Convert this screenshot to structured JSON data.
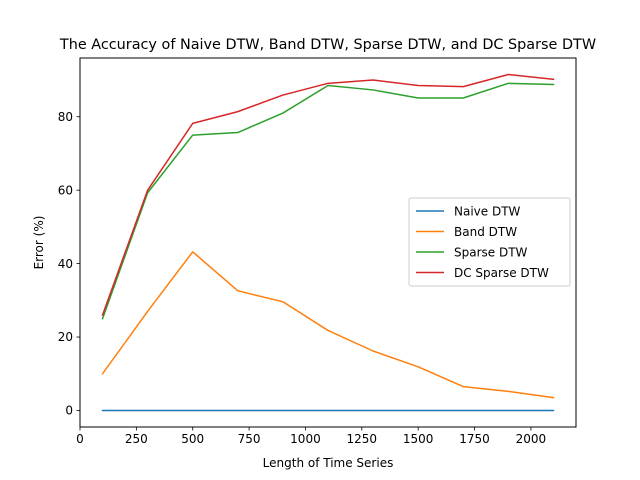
{
  "chart_data": {
    "type": "line",
    "title": "The Accuracy of Naive DTW, Band DTW, Sparse DTW, and DC Sparse DTW",
    "xlabel": "Length of Time Series",
    "ylabel": "Error (%)",
    "xlim": [
      0,
      2200
    ],
    "ylim": [
      -4.5,
      96
    ],
    "xticks": [
      0,
      250,
      500,
      750,
      1000,
      1250,
      1500,
      1750,
      2000
    ],
    "yticks": [
      0,
      20,
      40,
      60,
      80
    ],
    "grid": false,
    "legend_position": "center-right",
    "x": [
      100,
      300,
      500,
      700,
      900,
      1100,
      1300,
      1500,
      1700,
      1900,
      2100
    ],
    "series": [
      {
        "name": "Naive DTW",
        "color": "#1f77b4",
        "values": [
          0,
          0,
          0,
          0,
          0,
          0,
          0,
          0,
          0,
          0,
          0
        ]
      },
      {
        "name": "Band DTW",
        "color": "#ff7f0e",
        "values": [
          10,
          27,
          43.2,
          32.6,
          29.6,
          21.8,
          16.2,
          11.9,
          6.5,
          5.2,
          3.5
        ]
      },
      {
        "name": "Sparse DTW",
        "color": "#2ca02c",
        "values": [
          25,
          59.3,
          75,
          75.7,
          81,
          88.5,
          87.3,
          85.1,
          85.1,
          89.1,
          88.8
        ]
      },
      {
        "name": "DC Sparse DTW",
        "color": "#d62728",
        "values": [
          26,
          60,
          78.2,
          81.4,
          85.9,
          89.1,
          90,
          88.5,
          88.2,
          91.5,
          90.2
        ]
      }
    ]
  }
}
